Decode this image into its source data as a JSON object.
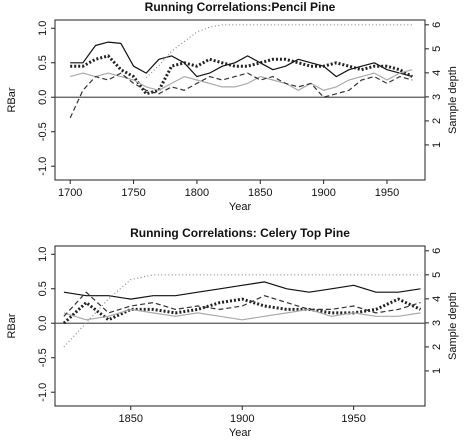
{
  "chart_data": [
    {
      "type": "line",
      "title": "Running Correlations:Pencil Pine",
      "x_label": "Year",
      "y_label": "RBar",
      "y2_label": "Sample depth",
      "x": [
        1700,
        1710,
        1720,
        1730,
        1740,
        1750,
        1760,
        1770,
        1780,
        1790,
        1800,
        1810,
        1820,
        1830,
        1840,
        1850,
        1860,
        1870,
        1880,
        1890,
        1900,
        1910,
        1920,
        1930,
        1940,
        1950,
        1960,
        1970
      ],
      "xlim": [
        1688,
        1980
      ],
      "xticks": [
        1700,
        1750,
        1800,
        1850,
        1900,
        1950
      ],
      "ylim": [
        -1.2,
        1.12
      ],
      "yticks": [
        {
          "value": 1,
          "label": "1.0"
        },
        {
          "value": 0.5,
          "label": "0.5"
        },
        {
          "value": 0,
          "label": "0.0"
        },
        {
          "value": -0.5,
          "label": "-0.5"
        },
        {
          "value": -1,
          "label": "-1.0"
        }
      ],
      "y2lim": [
        -0.46,
        6.2
      ],
      "y2ticks": [
        1,
        2,
        3,
        4,
        5,
        6
      ],
      "series": [
        {
          "color": "#111111",
          "style": "solid",
          "width": 1.2,
          "values": [
            0.5,
            0.5,
            0.75,
            0.8,
            0.78,
            0.45,
            0.35,
            0.55,
            0.6,
            0.5,
            0.3,
            0.35,
            0.45,
            0.5,
            0.6,
            0.5,
            0.4,
            0.45,
            0.55,
            0.5,
            0.45,
            0.3,
            0.4,
            0.45,
            0.5,
            0.4,
            0.35,
            0.3
          ]
        },
        {
          "color": "#222222",
          "style": "dotted",
          "width": 3,
          "values": [
            0.45,
            0.45,
            0.55,
            0.6,
            0.4,
            0.3,
            0.05,
            0.1,
            0.45,
            0.5,
            0.45,
            0.55,
            0.5,
            0.45,
            0.45,
            0.5,
            0.55,
            0.55,
            0.5,
            0.45,
            0.45,
            0.5,
            0.45,
            0.4,
            0.45,
            0.45,
            0.4,
            0.3
          ]
        },
        {
          "color": "#aaaaaa",
          "style": "solid",
          "width": 1.2,
          "values": [
            0.3,
            0.35,
            0.3,
            0.35,
            0.3,
            0.25,
            0.15,
            0.1,
            0.2,
            0.3,
            0.25,
            0.2,
            0.15,
            0.15,
            0.2,
            0.3,
            0.25,
            0.2,
            0.1,
            0.2,
            0.1,
            0.15,
            0.25,
            0.3,
            0.35,
            0.25,
            0.35,
            0.4
          ]
        },
        {
          "color": "#333333",
          "style": "dashed",
          "width": 1.2,
          "values": [
            -0.3,
            0.1,
            0.3,
            0.25,
            0.35,
            0.2,
            0.1,
            0.05,
            0.15,
            0.1,
            0.2,
            0.3,
            0.25,
            0.3,
            0.35,
            0.25,
            0.3,
            0.2,
            0.15,
            0.2,
            0.0,
            0.05,
            0.1,
            0.25,
            0.3,
            0.2,
            0.3,
            0.25
          ]
        },
        {
          "color": "#888888",
          "style": "fine-dotted",
          "width": 1.2,
          "axis": "y2",
          "values": [
            null,
            null,
            null,
            null,
            null,
            null,
            3.8,
            4.3,
            4.9,
            5.3,
            5.7,
            5.9,
            6,
            6,
            6,
            6,
            6,
            6,
            6,
            6,
            6,
            6,
            6,
            6,
            6,
            6,
            6,
            6
          ]
        }
      ]
    },
    {
      "type": "line",
      "title": "Running Correlations: Celery Top Pine",
      "x_label": "Year",
      "y_label": "RBar",
      "y2_label": "Sample depth",
      "x": [
        1820,
        1830,
        1840,
        1850,
        1860,
        1870,
        1880,
        1890,
        1900,
        1910,
        1920,
        1930,
        1940,
        1950,
        1960,
        1970,
        1980
      ],
      "xlim": [
        1816,
        1982
      ],
      "xticks": [
        1850,
        1900,
        1950
      ],
      "ylim": [
        -1.2,
        1.12
      ],
      "yticks": [
        {
          "value": 1,
          "label": "1.0"
        },
        {
          "value": 0.5,
          "label": "0.5"
        },
        {
          "value": 0,
          "label": "0.0"
        },
        {
          "value": -0.5,
          "label": "-0.5"
        },
        {
          "value": -1,
          "label": "-1.0"
        }
      ],
      "y2lim": [
        -0.46,
        6.2
      ],
      "y2ticks": [
        1,
        2,
        3,
        4,
        5,
        6
      ],
      "series": [
        {
          "color": "#111111",
          "style": "solid",
          "width": 1.2,
          "values": [
            0.45,
            0.4,
            0.4,
            0.35,
            0.4,
            0.4,
            0.45,
            0.5,
            0.55,
            0.6,
            0.5,
            0.45,
            0.5,
            0.55,
            0.45,
            0.45,
            0.5
          ]
        },
        {
          "color": "#222222",
          "style": "dotted",
          "width": 3,
          "values": [
            0.0,
            0.3,
            0.05,
            0.2,
            0.2,
            0.15,
            0.2,
            0.3,
            0.35,
            0.25,
            0.2,
            0.2,
            0.15,
            0.15,
            0.2,
            0.35,
            0.2
          ]
        },
        {
          "color": "#aaaaaa",
          "style": "solid",
          "width": 1.2,
          "values": [
            0.15,
            0.05,
            0.1,
            0.2,
            0.15,
            0.1,
            0.15,
            0.1,
            0.05,
            0.1,
            0.15,
            0.2,
            0.1,
            0.15,
            0.1,
            0.1,
            0.15
          ]
        },
        {
          "color": "#333333",
          "style": "dashed",
          "width": 1.2,
          "values": [
            0.1,
            0.45,
            0.15,
            0.25,
            0.3,
            0.2,
            0.25,
            0.2,
            0.25,
            0.4,
            0.3,
            0.2,
            0.2,
            0.25,
            0.15,
            0.2,
            0.3
          ]
        },
        {
          "color": "#888888",
          "style": "fine-dotted",
          "width": 1.2,
          "axis": "y2",
          "values": [
            2,
            3,
            4,
            4.8,
            5,
            5,
            5,
            5,
            5,
            5,
            5,
            5,
            5,
            5,
            5,
            5,
            5
          ]
        }
      ]
    }
  ]
}
